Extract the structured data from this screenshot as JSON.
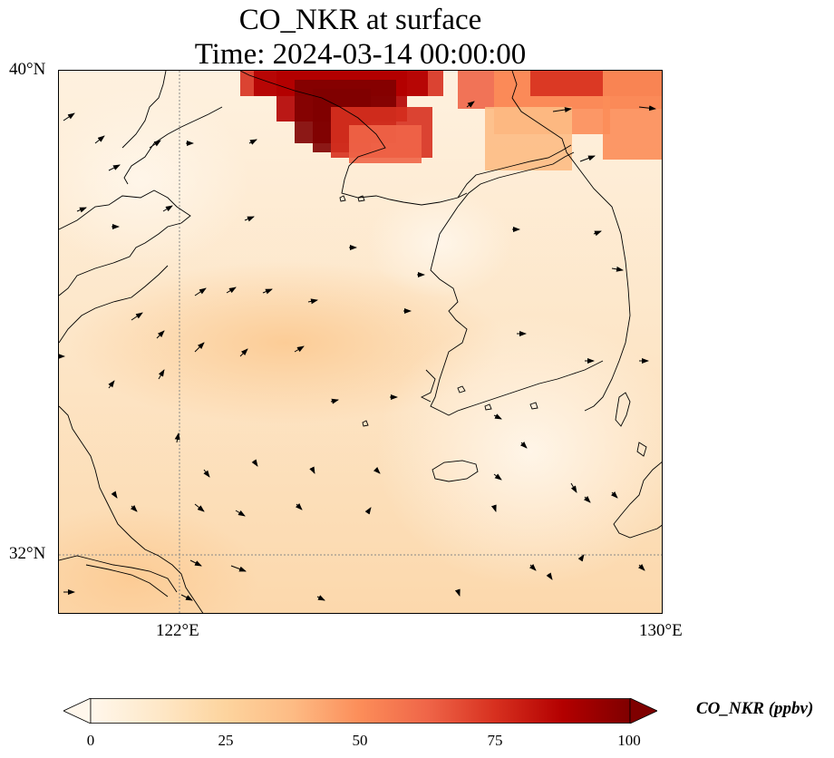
{
  "title": {
    "line1": "CO_NKR at surface",
    "line2": "Time: 2024-03-14 00:00:00"
  },
  "axes": {
    "lat_ticks": [
      {
        "label": "40°N",
        "value": 40
      },
      {
        "label": "32°N",
        "value": 32
      }
    ],
    "lon_ticks": [
      {
        "label": "122°E",
        "value": 122
      },
      {
        "label": "130°E",
        "value": 130
      }
    ],
    "extent": {
      "lon_min": 120,
      "lon_max": 130,
      "lat_min": 31,
      "lat_max": 40
    }
  },
  "colorbar": {
    "title": "CO_NKR (ppbv)",
    "ticks": [
      "0",
      "25",
      "50",
      "75",
      "100"
    ],
    "tick_values": [
      0,
      25,
      50,
      75,
      100
    ],
    "range": [
      0,
      100
    ],
    "colormap": "OrRd",
    "extend": "both",
    "colors": [
      "#fff7ec",
      "#fee8c8",
      "#fdd49e",
      "#fdbb84",
      "#fc8d59",
      "#ef6548",
      "#d7301f",
      "#b30000",
      "#7f0000"
    ]
  },
  "gridlines": {
    "style": "dotted",
    "color": "#888888"
  },
  "coastline_color": "#000000"
}
